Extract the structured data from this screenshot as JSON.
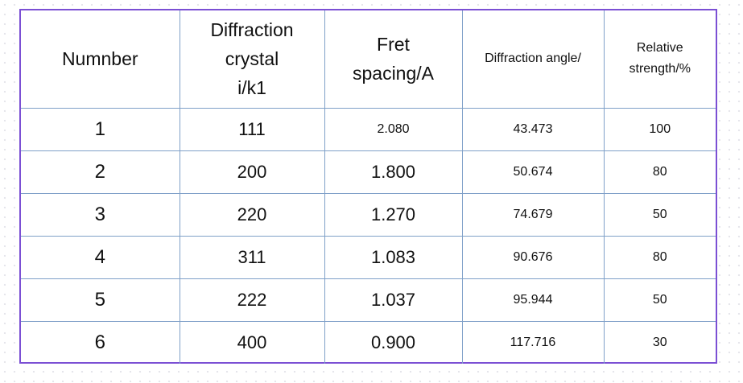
{
  "table": {
    "headers": [
      "Numnber",
      "Diffraction\ncrystal\ni/k1",
      "Fret\nspacing/A",
      "Diffraction angle/",
      "Relative\nstrength/%"
    ],
    "rows": [
      [
        "1",
        "111",
        "2.080",
        "43.473",
        "100"
      ],
      [
        "2",
        "200",
        "1.800",
        "50.674",
        "80"
      ],
      [
        "3",
        "220",
        "1.270",
        "74.679",
        "50"
      ],
      [
        "4",
        "311",
        "1.083",
        "90.676",
        "80"
      ],
      [
        "5",
        "222",
        "1.037",
        "95.944",
        "50"
      ],
      [
        "6",
        "400",
        "0.900",
        "117.716",
        "30"
      ]
    ]
  },
  "colors": {
    "frame_border": "#7b4fd4",
    "cell_border": "#7fa0c8"
  }
}
